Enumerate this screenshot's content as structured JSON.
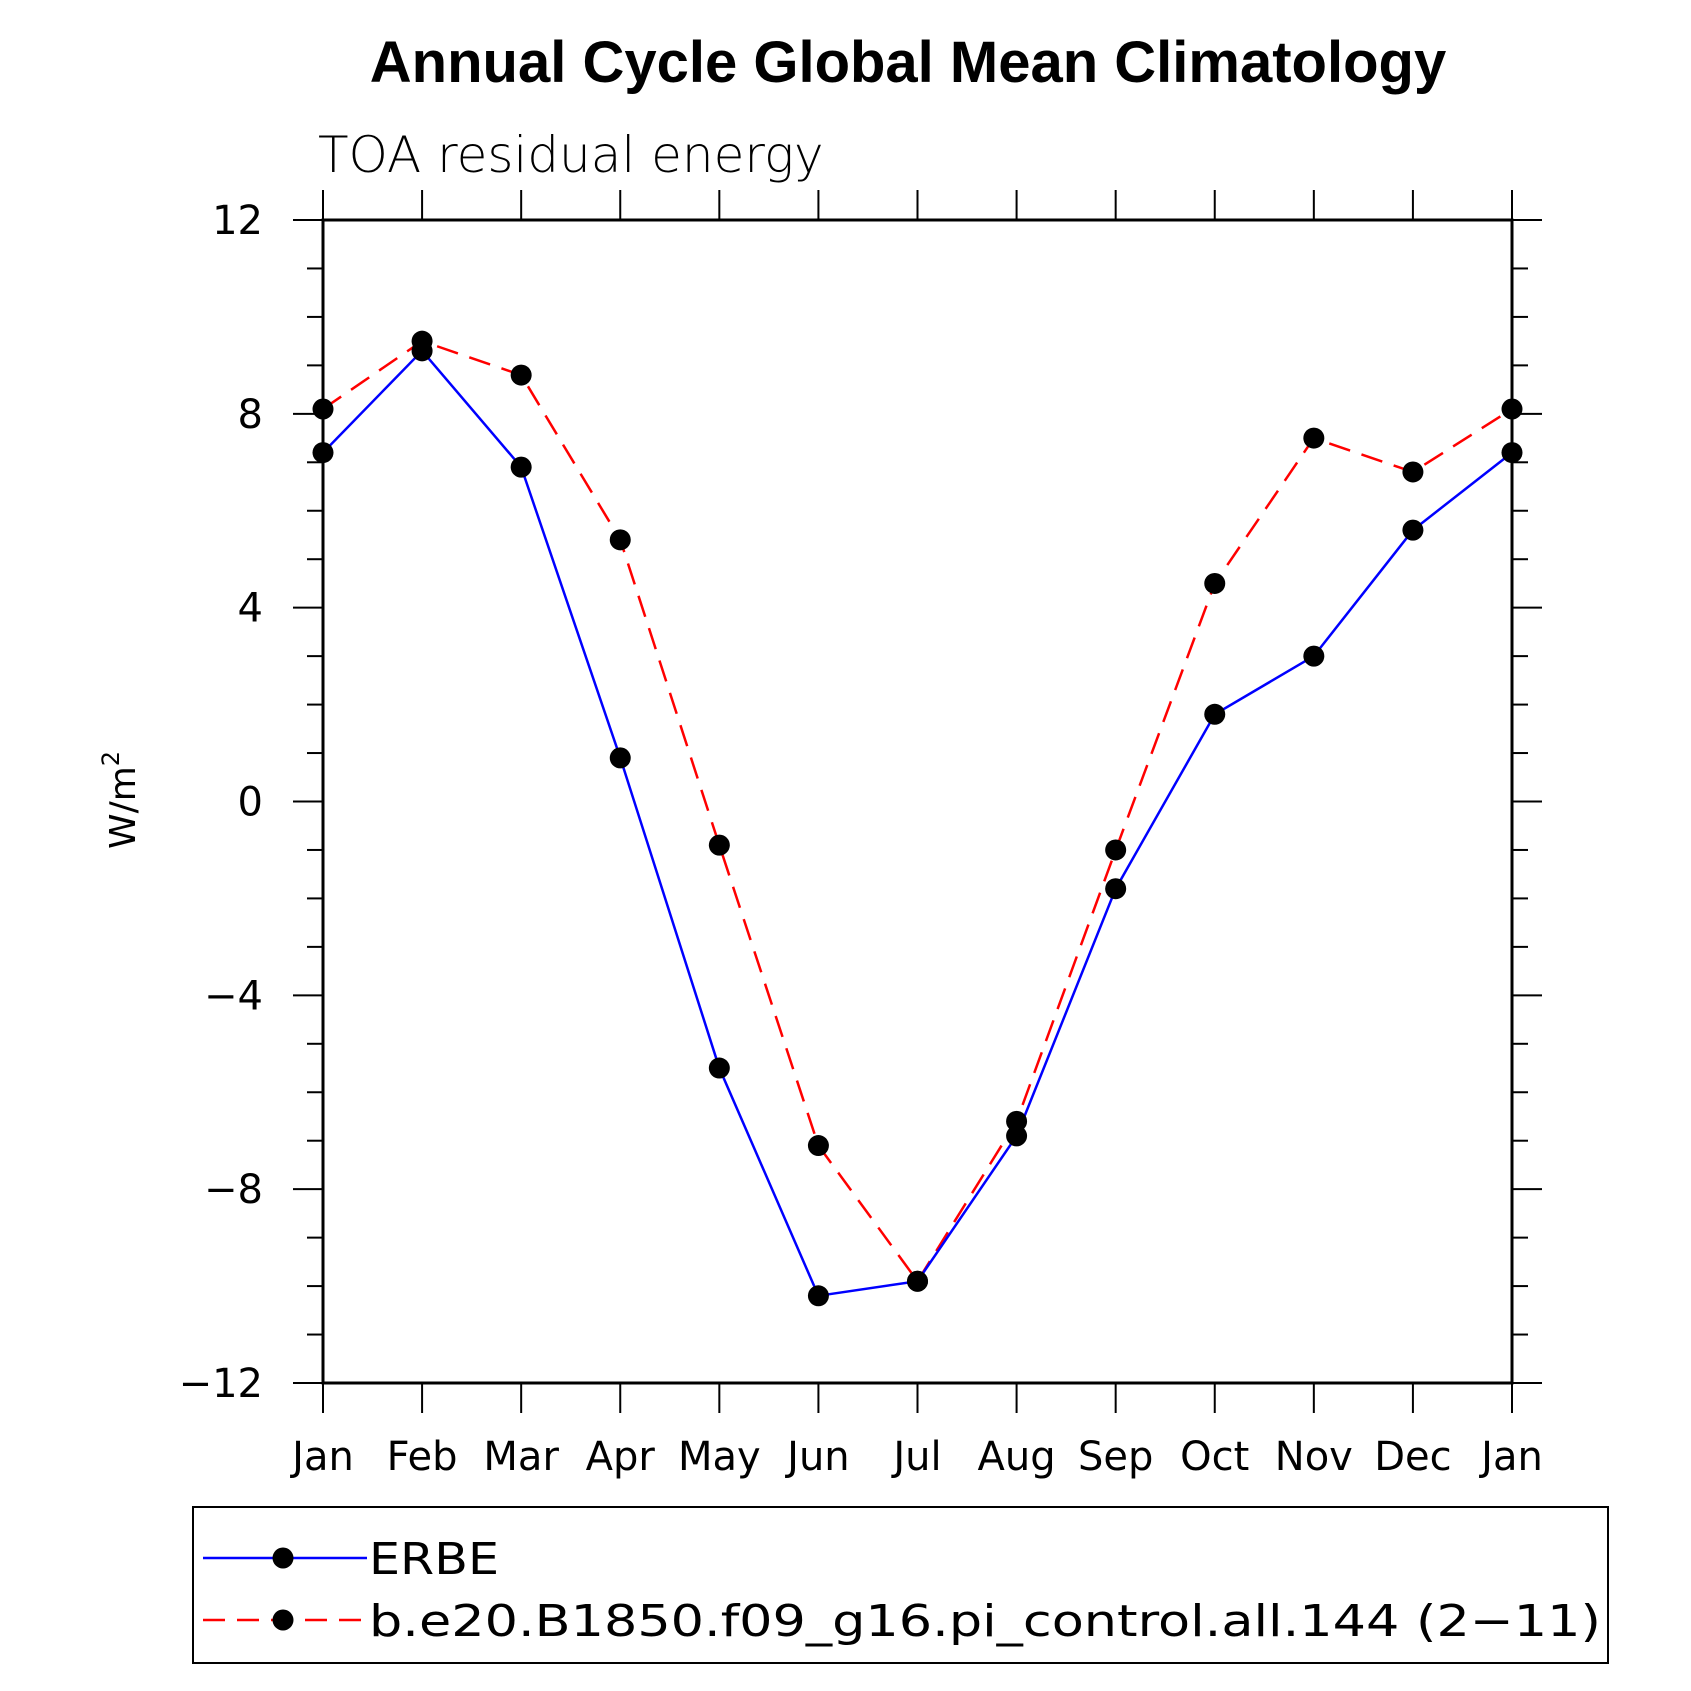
{
  "chart_data": {
    "type": "line",
    "title": "Annual Cycle Global Mean Climatology",
    "subtitle": "TOA residual energy",
    "ylabel": "W/m",
    "ylabel_sup": "2",
    "xlabel": "",
    "categories": [
      "Jan",
      "Feb",
      "Mar",
      "Apr",
      "May",
      "Jun",
      "Jul",
      "Aug",
      "Sep",
      "Oct",
      "Nov",
      "Dec",
      "Jan"
    ],
    "ylim": [
      -12,
      12
    ],
    "yticks": [
      -12,
      -8,
      -4,
      0,
      4,
      8,
      12
    ],
    "ytick_labels": [
      "−12",
      "−8",
      "−4",
      "0",
      "4",
      "8",
      "12"
    ],
    "grid": false,
    "legend_position": "bottom",
    "series": [
      {
        "name": "ERBE",
        "color": "#0000ff",
        "style": "solid",
        "values": [
          7.2,
          9.3,
          6.9,
          0.9,
          -5.5,
          -10.2,
          -9.9,
          -6.9,
          -1.8,
          1.8,
          3.0,
          5.6,
          7.2
        ]
      },
      {
        "name": "b.e20.B1850.f09_g16.pi_control.all.144 (2−11)",
        "color": "#ff0000",
        "style": "dashed",
        "values": [
          8.1,
          9.5,
          8.8,
          5.4,
          -0.9,
          -7.1,
          -9.9,
          -6.6,
          -1.0,
          4.5,
          7.5,
          6.8,
          8.1
        ]
      }
    ]
  }
}
